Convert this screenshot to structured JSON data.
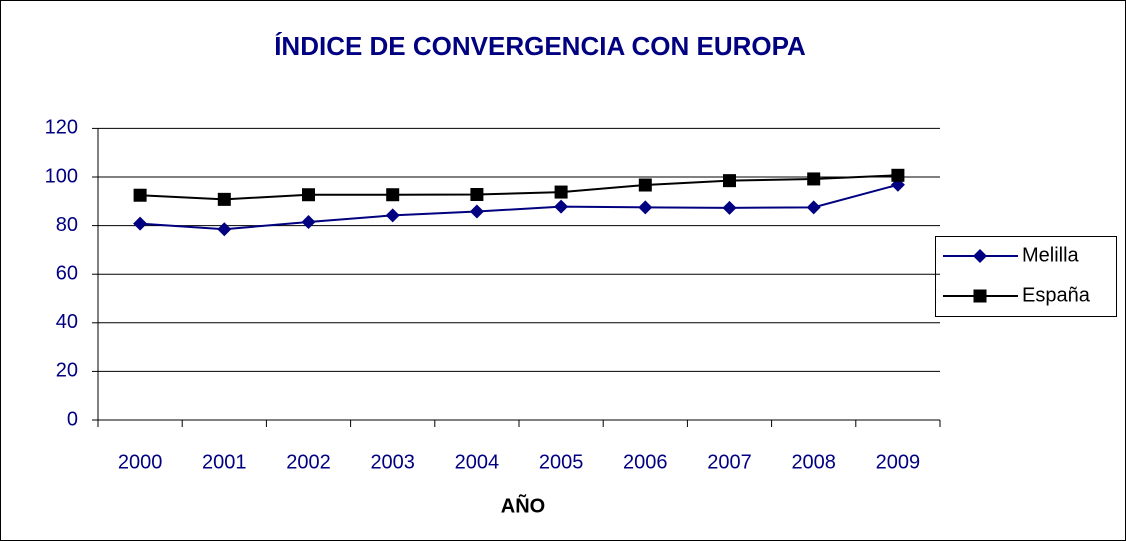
{
  "chart_data": {
    "type": "line",
    "title": "ÍNDICE DE CONVERGENCIA CON EUROPA",
    "x_label": "AÑO",
    "categories": [
      "2000",
      "2001",
      "2002",
      "2003",
      "2004",
      "2005",
      "2006",
      "2007",
      "2008",
      "2009"
    ],
    "series": [
      {
        "name": "Melilla",
        "color": "#000080",
        "marker": "diamond",
        "values": [
          80.8,
          78.5,
          81.5,
          84.2,
          85.8,
          87.8,
          87.5,
          87.3,
          87.5,
          96.8
        ]
      },
      {
        "name": "España",
        "color": "#000000",
        "marker": "square",
        "values": [
          92.5,
          90.8,
          92.7,
          92.7,
          92.8,
          93.8,
          96.7,
          98.5,
          99.2,
          100.7
        ]
      }
    ],
    "ylim": [
      0,
      120
    ],
    "yticks": [
      0,
      20,
      40,
      60,
      80,
      100,
      120
    ],
    "grid": true,
    "legend": "right"
  }
}
